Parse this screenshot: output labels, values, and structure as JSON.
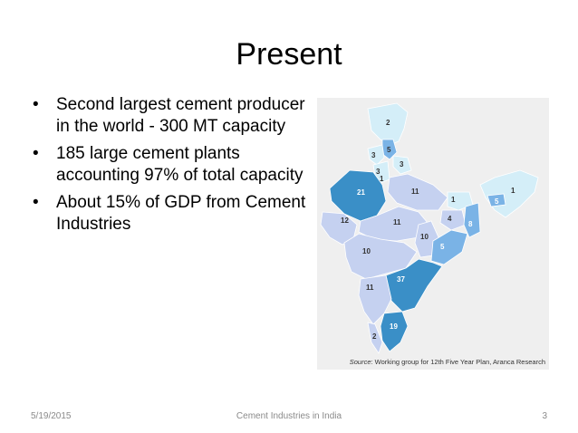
{
  "slide": {
    "title": "Present",
    "bullets": [
      "Second largest cement producer in the world - 300 MT capacity",
      "185 large cement plants accounting 97% of total capacity",
      "About 15% of GDP from Cement Industries"
    ],
    "bullet_glyph": "•"
  },
  "map": {
    "state_values": [
      "2",
      "5",
      "3",
      "3",
      "3",
      "1",
      "21",
      "11",
      "1",
      "5",
      "1",
      "12",
      "11",
      "4",
      "8",
      "10",
      "5",
      "10",
      "37",
      "11",
      "19",
      "2"
    ],
    "source_label": "Source",
    "source_text": ": Working group for 12th Five Year Plan, Aranca Research",
    "colors": {
      "dark": "#3a8fc7",
      "medium": "#7ab3e6",
      "light": "#c5d1f0",
      "pale": "#d4eef8"
    }
  },
  "footer": {
    "date": "5/19/2015",
    "center": "Cement Industries in India",
    "page": "3"
  }
}
